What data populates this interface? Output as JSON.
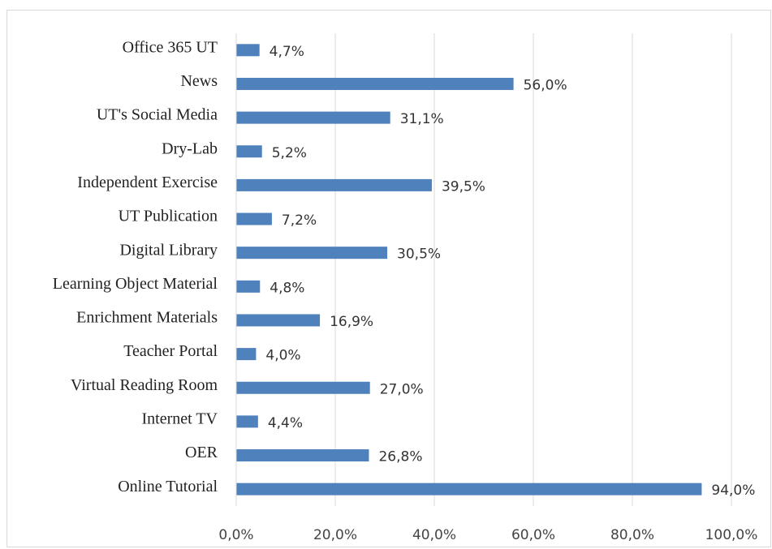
{
  "chart_data": {
    "type": "bar",
    "orientation": "horizontal",
    "categories": [
      "Office 365 UT",
      "News",
      "UT's Social Media",
      "Dry-Lab",
      "Independent Exercise",
      "UT Publication",
      "Digital Library",
      "Learning Object Material",
      "Enrichment Materials",
      "Teacher Portal",
      "Virtual Reading Room",
      "Internet TV",
      "OER",
      "Online Tutorial"
    ],
    "values": [
      4.7,
      56.0,
      31.1,
      5.2,
      39.5,
      7.2,
      30.5,
      4.8,
      16.9,
      4.0,
      27.0,
      4.4,
      26.8,
      94.0
    ],
    "value_labels": [
      "4,7%",
      "56,0%",
      "31,1%",
      "5,2%",
      "39,5%",
      "7,2%",
      "30,5%",
      "4,8%",
      "16,9%",
      "4,0%",
      "27,0%",
      "4,4%",
      "26,8%",
      "94,0%"
    ],
    "color": "#4f81bd",
    "xlim": [
      0,
      100
    ],
    "xticks": [
      {
        "value": 0,
        "label": "0,0%"
      },
      {
        "value": 20,
        "label": "20,0%"
      },
      {
        "value": 40,
        "label": "40,0%"
      },
      {
        "value": 60,
        "label": "60,0%"
      },
      {
        "value": 80,
        "label": "80,0%"
      },
      {
        "value": 100,
        "label": "100,0%"
      }
    ],
    "grid": true
  }
}
